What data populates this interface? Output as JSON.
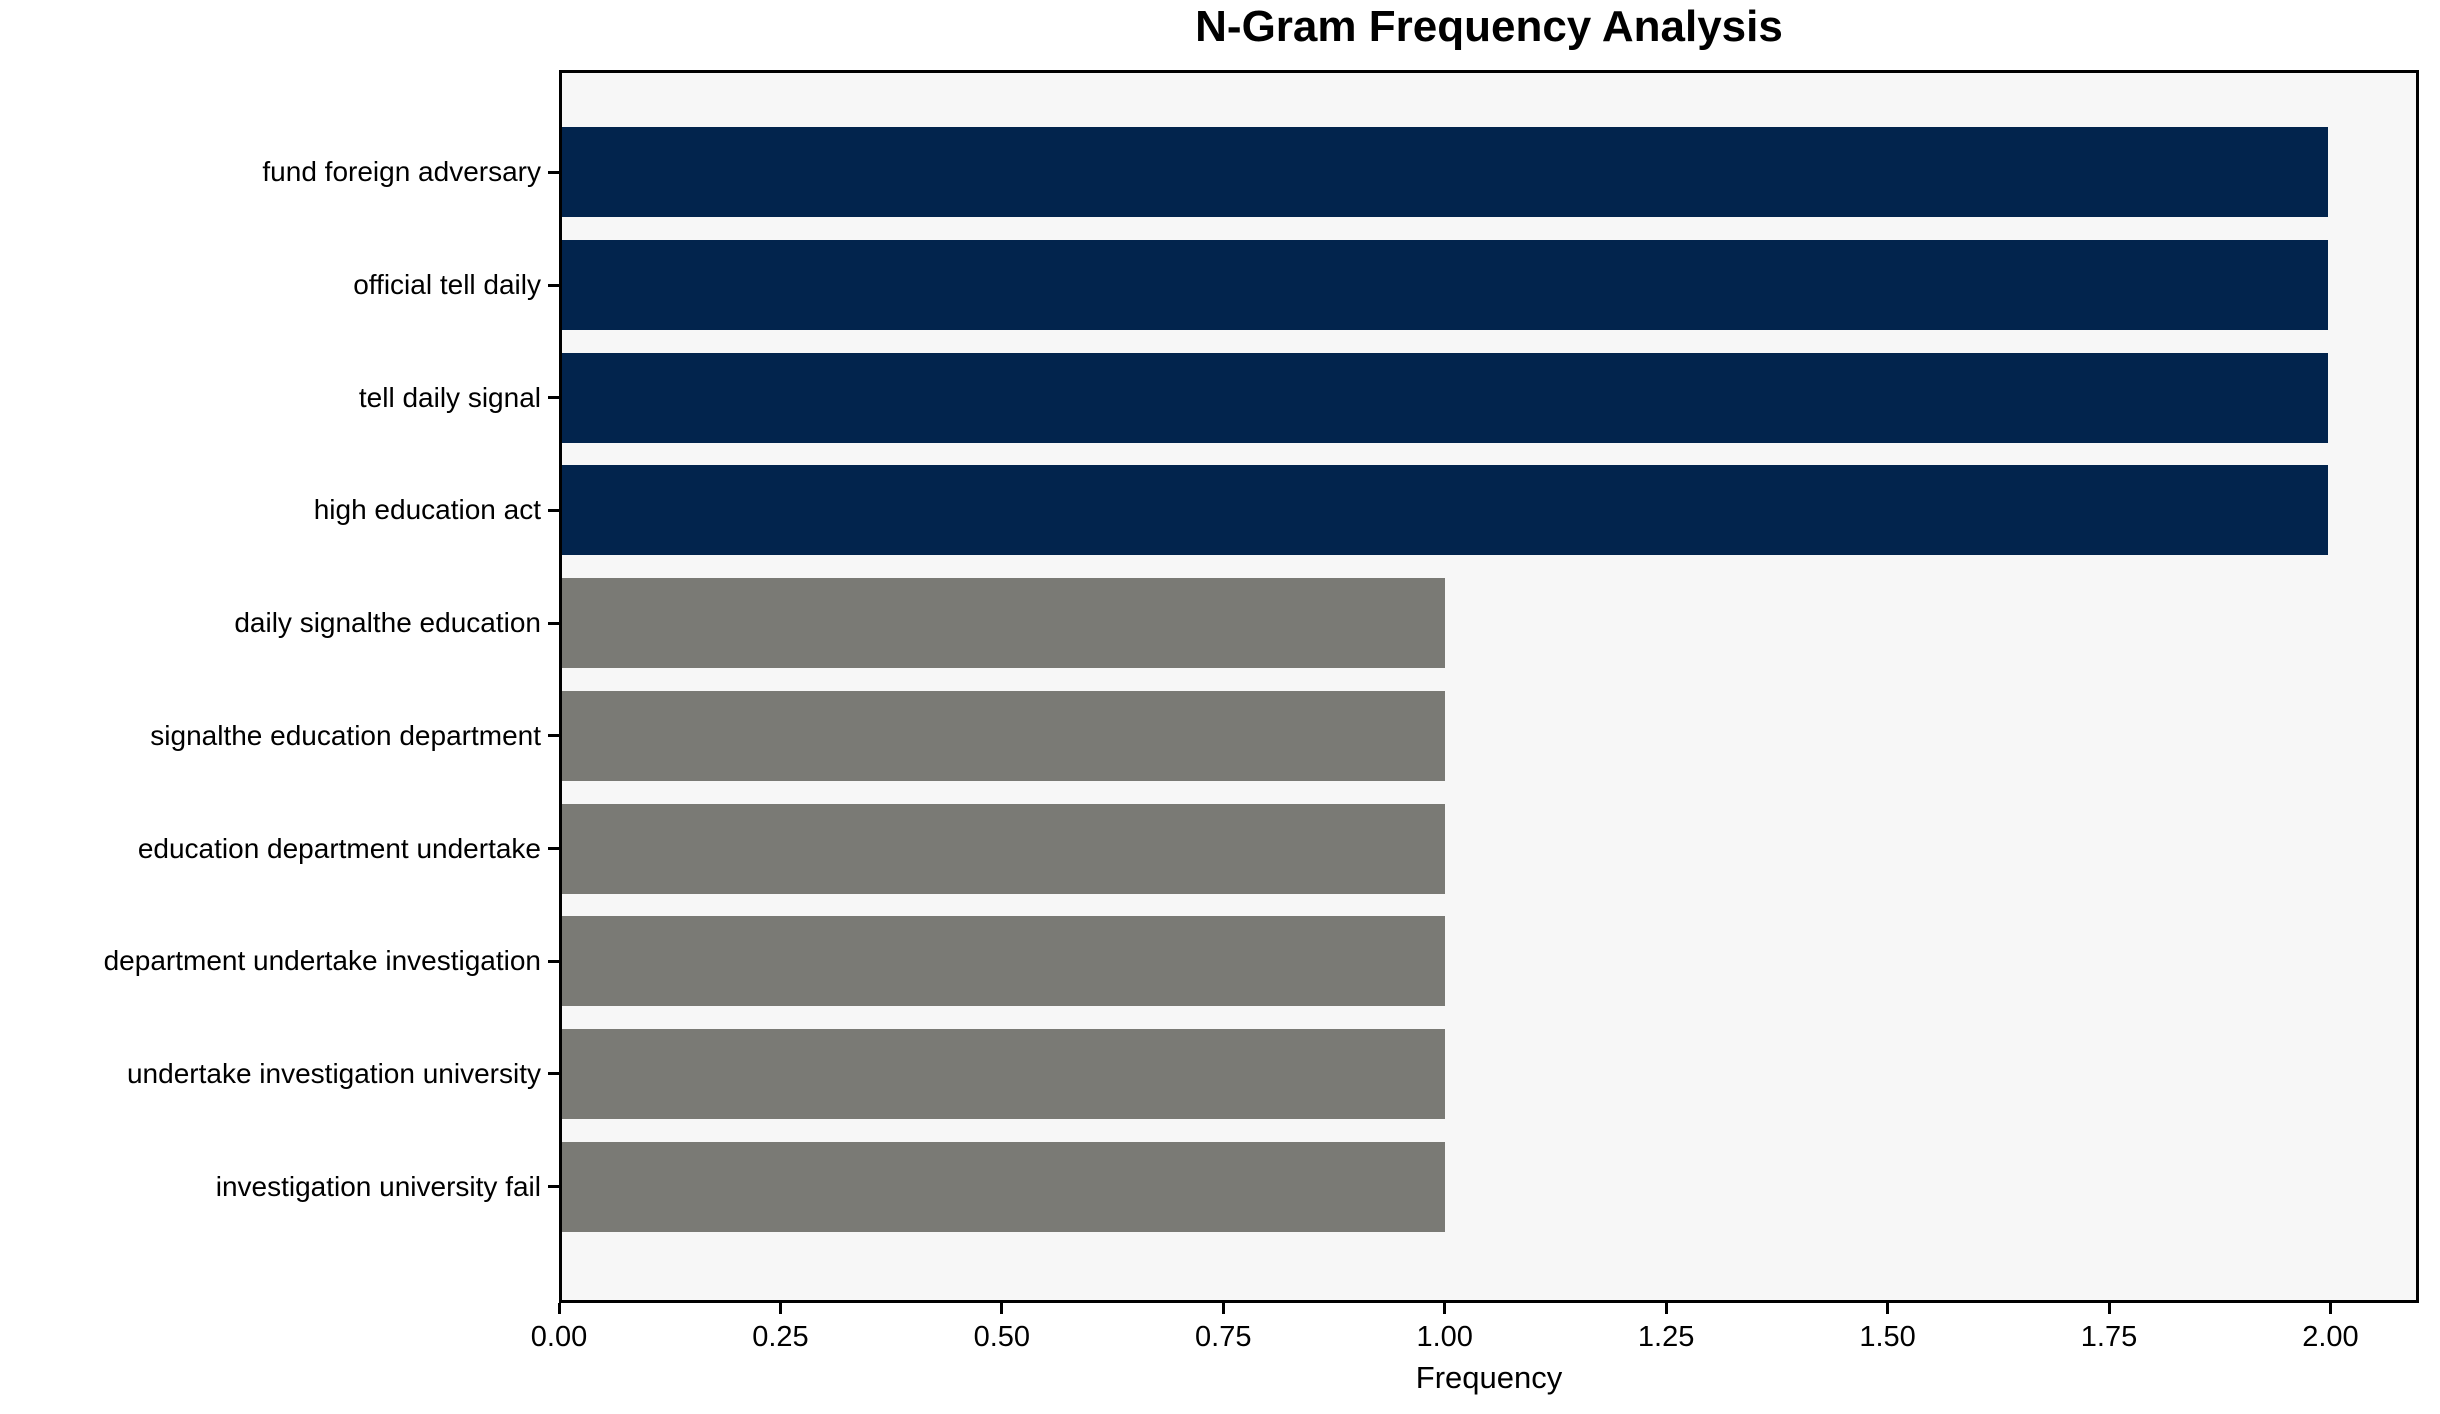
{
  "chart_data": {
    "type": "bar",
    "orientation": "horizontal",
    "title": "N-Gram Frequency Analysis",
    "xlabel": "Frequency",
    "ylabel": "",
    "categories": [
      "fund foreign adversary",
      "official tell daily",
      "tell daily signal",
      "high education act",
      "daily signalthe education",
      "signalthe education department",
      "education department undertake",
      "department undertake investigation",
      "undertake investigation university",
      "investigation university fail"
    ],
    "values": [
      2,
      2,
      2,
      2,
      1,
      1,
      1,
      1,
      1,
      1
    ],
    "bar_colors": [
      "#02244d",
      "#02244d",
      "#02244d",
      "#02244d",
      "#7a7a75",
      "#7a7a75",
      "#7a7a75",
      "#7a7a75",
      "#7a7a75",
      "#7a7a75"
    ],
    "xlim": [
      0,
      2.1
    ],
    "xticks": [
      {
        "value": 0.0,
        "label": "0.00"
      },
      {
        "value": 0.25,
        "label": "0.25"
      },
      {
        "value": 0.5,
        "label": "0.50"
      },
      {
        "value": 0.75,
        "label": "0.75"
      },
      {
        "value": 1.0,
        "label": "1.00"
      },
      {
        "value": 1.25,
        "label": "1.25"
      },
      {
        "value": 1.5,
        "label": "1.50"
      },
      {
        "value": 1.75,
        "label": "1.75"
      },
      {
        "value": 2.0,
        "label": "2.00"
      }
    ],
    "grid": false,
    "legend": null,
    "plot_background": "#f7f7f7",
    "figure_background": "#ffffff",
    "spine_color": "#000000"
  }
}
